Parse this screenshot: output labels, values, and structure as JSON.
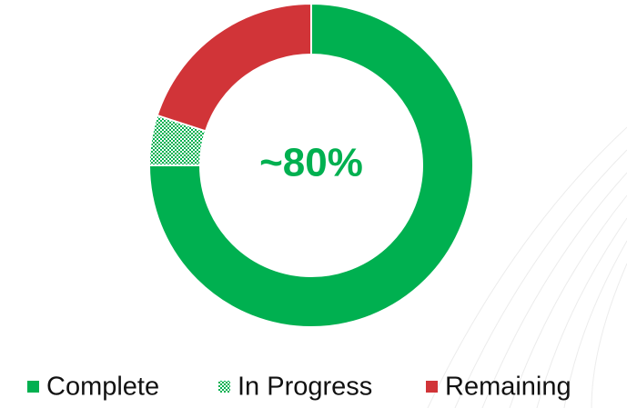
{
  "chart_data": {
    "type": "donut",
    "categories": [
      "Complete",
      "In Progress",
      "Remaining"
    ],
    "values": [
      75,
      5,
      20
    ],
    "colors": [
      "#00b050",
      "#00b050",
      "#d13438"
    ],
    "hatched": [
      false,
      true,
      false
    ],
    "annotation": "~80%",
    "annotation_color": "#00b050",
    "legend": "bottom"
  }
}
